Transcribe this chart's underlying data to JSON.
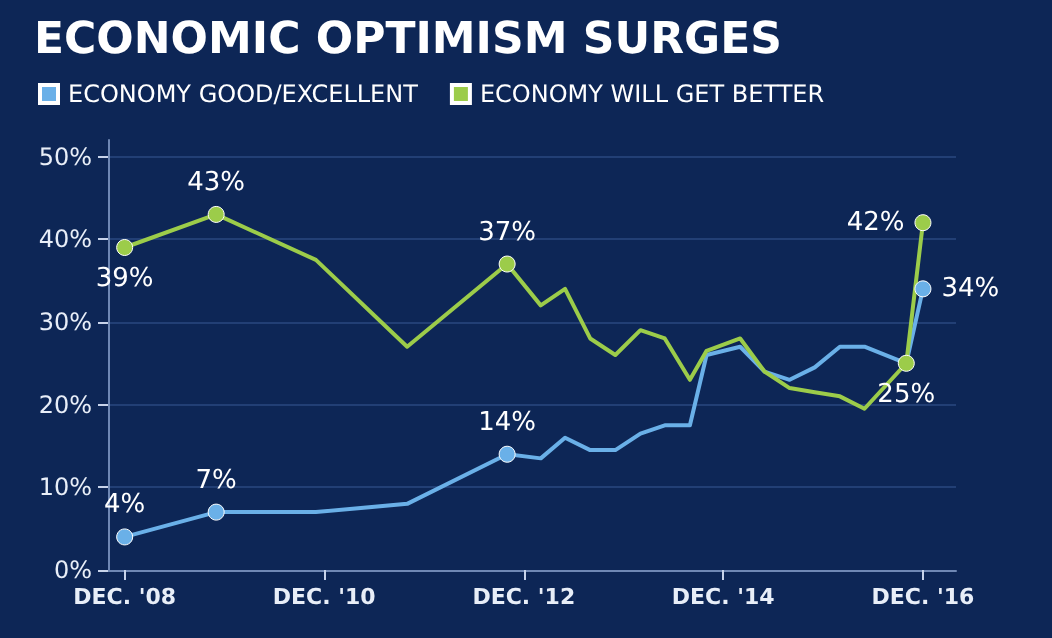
{
  "chart_data": {
    "type": "line",
    "title": "ECONOMIC OPTIMISM SURGES",
    "x": [
      "2008-12",
      "2009-11",
      "2010-11",
      "2011-10",
      "2012-10",
      "2013-02",
      "2013-05",
      "2013-08",
      "2013-11",
      "2014-02",
      "2014-05",
      "2014-08",
      "2014-10",
      "2015-02",
      "2015-05",
      "2015-08",
      "2015-11",
      "2016-02",
      "2016-05",
      "2016-10",
      "2016-12"
    ],
    "series": [
      {
        "name": "ECONOMY GOOD/EXCELLENT",
        "color": "#6ab0e8",
        "values": [
          4,
          7,
          7,
          8,
          14,
          13.5,
          16,
          14.5,
          14.5,
          16.5,
          17.5,
          17.5,
          26,
          27,
          24,
          23,
          24.5,
          27,
          27,
          25,
          34
        ],
        "value_labels": [
          "4%",
          "7%",
          null,
          null,
          "14%",
          null,
          null,
          null,
          null,
          null,
          null,
          null,
          null,
          null,
          null,
          null,
          null,
          null,
          null,
          null,
          "34%"
        ]
      },
      {
        "name": "ECONOMY WILL GET BETTER",
        "color": "#9ccc4a",
        "values": [
          39,
          43,
          37.5,
          27,
          37,
          32,
          34,
          28,
          26,
          29,
          28,
          23,
          26.5,
          28,
          24,
          22,
          21.5,
          21,
          19.5,
          25,
          42
        ],
        "value_labels": [
          "39%",
          "43%",
          null,
          null,
          "37%",
          null,
          null,
          null,
          null,
          null,
          null,
          null,
          null,
          null,
          null,
          null,
          null,
          null,
          null,
          "25%",
          "42%"
        ]
      }
    ],
    "xlim": [
      "2008-10",
      "2017-04"
    ],
    "xticks": [
      {
        "value": "2008-12",
        "label": "DEC. '08"
      },
      {
        "value": "2010-12",
        "label": "DEC. '10"
      },
      {
        "value": "2012-12",
        "label": "DEC. '12"
      },
      {
        "value": "2014-12",
        "label": "DEC. '14"
      },
      {
        "value": "2016-12",
        "label": "DEC. '16"
      }
    ],
    "ylim": [
      0,
      52
    ],
    "yticks": [
      {
        "value": 0,
        "label": "0%"
      },
      {
        "value": 10,
        "label": "10%"
      },
      {
        "value": 20,
        "label": "20%"
      },
      {
        "value": 30,
        "label": "30%"
      },
      {
        "value": 40,
        "label": "40%"
      },
      {
        "value": 50,
        "label": "50%"
      }
    ],
    "grid": "y",
    "legend": "top left",
    "line_style": "solid"
  }
}
